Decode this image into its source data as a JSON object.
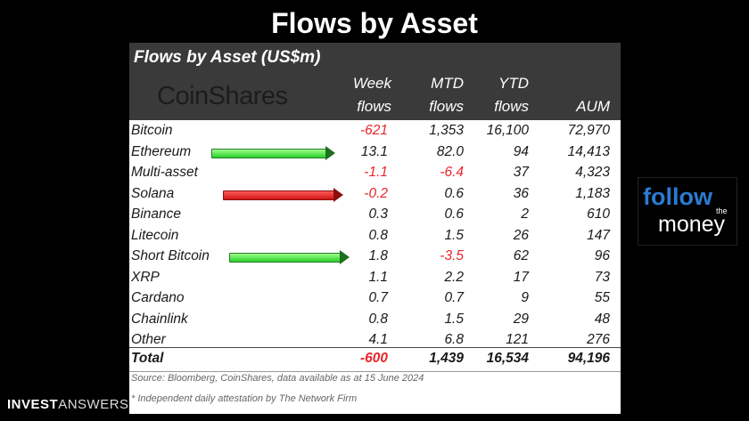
{
  "slide_title": "Flows by Asset",
  "panel": {
    "title": "Flows by Asset (US$m)",
    "logo_text": "CoinShares",
    "headers": {
      "week": [
        "Week",
        "flows"
      ],
      "mtd": [
        "MTD",
        "flows"
      ],
      "ytd": [
        "YTD",
        "flows"
      ],
      "aum": "AUM"
    },
    "rows": [
      {
        "name": "Bitcoin",
        "week": "-621",
        "mtd": "1,353",
        "ytd": "16,100",
        "aum": "72,970"
      },
      {
        "name": "Ethereum",
        "week": "13.1",
        "mtd": "82.0",
        "ytd": "94",
        "aum": "14,413"
      },
      {
        "name": "Multi-asset",
        "week": "-1.1",
        "mtd": "-6.4",
        "ytd": "37",
        "aum": "4,323"
      },
      {
        "name": "Solana",
        "week": "-0.2",
        "mtd": "0.6",
        "ytd": "36",
        "aum": "1,183"
      },
      {
        "name": "Binance",
        "week": "0.3",
        "mtd": "0.6",
        "ytd": "2",
        "aum": "610"
      },
      {
        "name": "Litecoin",
        "week": "0.8",
        "mtd": "1.5",
        "ytd": "26",
        "aum": "147"
      },
      {
        "name": "Short Bitcoin",
        "week": "1.8",
        "mtd": "-3.5",
        "ytd": "62",
        "aum": "96"
      },
      {
        "name": "XRP",
        "week": "1.1",
        "mtd": "2.2",
        "ytd": "17",
        "aum": "73"
      },
      {
        "name": "Cardano",
        "week": "0.7",
        "mtd": "0.7",
        "ytd": "9",
        "aum": "55"
      },
      {
        "name": "Chainlink",
        "week": "0.8",
        "mtd": "1.5",
        "ytd": "29",
        "aum": "48"
      },
      {
        "name": "Other",
        "week": "4.1",
        "mtd": "6.8",
        "ytd": "121",
        "aum": "276"
      }
    ],
    "total": {
      "name": "Total",
      "week": "-600",
      "mtd": "1,439",
      "ytd": "16,534",
      "aum": "94,196"
    },
    "source": "Source: Bloomberg, CoinShares, data available as at 15 June 2024",
    "footnote": "* Independent daily attestation by The Network Firm"
  },
  "arrows": [
    {
      "row": "Ethereum",
      "color": "green"
    },
    {
      "row": "Solana",
      "color": "red"
    },
    {
      "row": "Short Bitcoin",
      "color": "green"
    }
  ],
  "brand": {
    "bold": "INVEST",
    "light": "ANSWERS"
  },
  "follow_logo": {
    "follow": "follow",
    "the": "the",
    "money": "money"
  },
  "colors": {
    "negative": "#e8262b",
    "header_bg": "#3a3a3a",
    "arrow_green": "#2ad02a",
    "arrow_red": "#d01414"
  }
}
